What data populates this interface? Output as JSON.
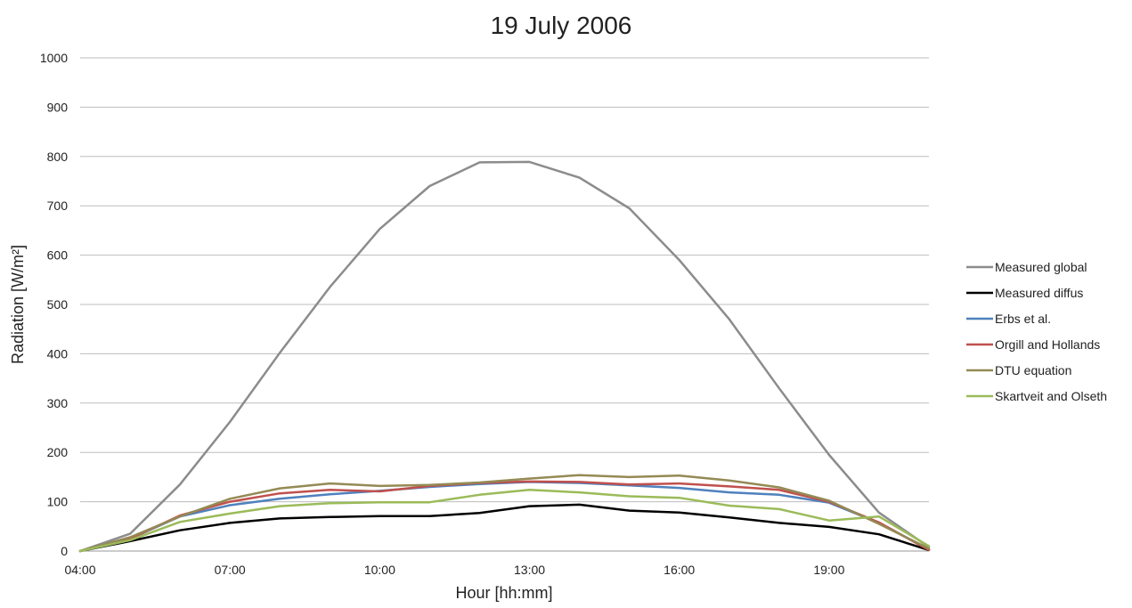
{
  "chart_data": {
    "type": "line",
    "title": "19 July 2006",
    "xlabel": "Hour [hh:mm]",
    "ylabel": "Radiation [W/m²]",
    "x": [
      "04:00",
      "05:00",
      "06:00",
      "07:00",
      "08:00",
      "09:00",
      "10:00",
      "11:00",
      "12:00",
      "13:00",
      "14:00",
      "15:00",
      "16:00",
      "17:00",
      "18:00",
      "19:00",
      "20:00",
      "21:00"
    ],
    "x_tick_labels": [
      "04:00",
      "07:00",
      "10:00",
      "13:00",
      "16:00",
      "19:00"
    ],
    "ylim": [
      0,
      1000
    ],
    "y_ticks": [
      0,
      100,
      200,
      300,
      400,
      500,
      600,
      700,
      800,
      900,
      1000
    ],
    "grid": true,
    "legend_position": "right",
    "series": [
      {
        "name": "Measured global",
        "color": "#8c8c8c",
        "values": [
          0,
          35,
          135,
          262,
          402,
          535,
          653,
          740,
          788,
          789,
          757,
          695,
          590,
          470,
          330,
          195,
          78,
          8
        ]
      },
      {
        "name": "Measured diffus",
        "color": "#000000",
        "values": [
          0,
          20,
          42,
          57,
          66,
          69,
          71,
          71,
          77,
          91,
          94,
          82,
          78,
          68,
          57,
          49,
          34,
          2
        ]
      },
      {
        "name": "Erbs et al.",
        "color": "#4f81bd",
        "values": [
          0,
          25,
          70,
          93,
          106,
          115,
          122,
          130,
          136,
          140,
          138,
          133,
          128,
          119,
          114,
          98,
          57,
          3
        ]
      },
      {
        "name": "Orgill and Hollands",
        "color": "#c0504d",
        "values": [
          0,
          25,
          72,
          100,
          117,
          124,
          121,
          132,
          138,
          141,
          140,
          135,
          137,
          131,
          124,
          100,
          58,
          2
        ]
      },
      {
        "name": "DTU equation",
        "color": "#948a54",
        "values": [
          0,
          28,
          70,
          106,
          127,
          137,
          132,
          134,
          139,
          147,
          154,
          150,
          153,
          143,
          129,
          102,
          55,
          5
        ]
      },
      {
        "name": "Skartveit and Olseth",
        "color": "#9bbb59",
        "values": [
          0,
          22,
          59,
          76,
          91,
          97,
          99,
          99,
          114,
          124,
          119,
          111,
          108,
          92,
          85,
          62,
          70,
          10
        ]
      }
    ]
  }
}
